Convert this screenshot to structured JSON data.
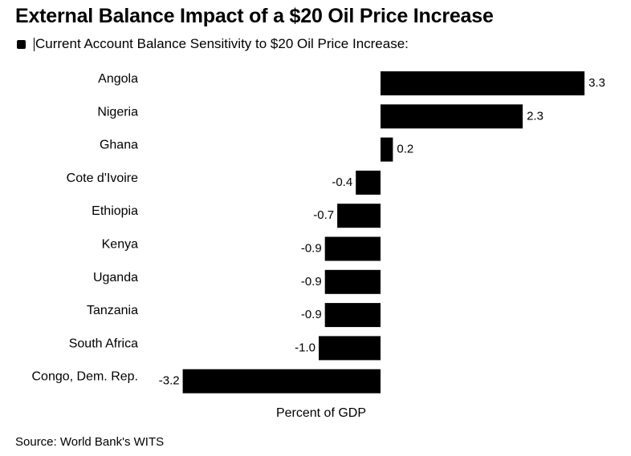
{
  "title": "External Balance Impact of a $20 Oil Price Increase",
  "legend": {
    "label": "Current Account Balance Sensitivity to $20 Oil Price Increase:",
    "color": "#000000"
  },
  "source": "Source: World Bank's WITS",
  "chart_data": {
    "type": "bar",
    "orientation": "horizontal",
    "title": "External Balance Impact of a $20 Oil Price Increase",
    "xlabel": "Percent of GDP",
    "ylabel": "",
    "categories": [
      "Angola",
      "Nigeria",
      "Ghana",
      "Cote d'Ivoire",
      "Ethiopia",
      "Kenya",
      "Uganda",
      "Tanzania",
      "South Africa",
      "Congo, Dem. Rep."
    ],
    "series": [
      {
        "name": "Current Account Balance Sensitivity to $20 Oil Price Increase:",
        "values": [
          3.3,
          2.3,
          0.2,
          -0.4,
          -0.7,
          -0.9,
          -0.9,
          -0.9,
          -1.0,
          -3.2
        ],
        "labels": [
          "3.3",
          "2.3",
          "0.2",
          "-0.4",
          "-0.7",
          "-0.9",
          "-0.9",
          "-0.9",
          "-1.0",
          "-3.2"
        ],
        "color": "#000000"
      }
    ],
    "xlim": [
      -3.2,
      3.3
    ],
    "grid": false,
    "legend_position": "top-left"
  }
}
